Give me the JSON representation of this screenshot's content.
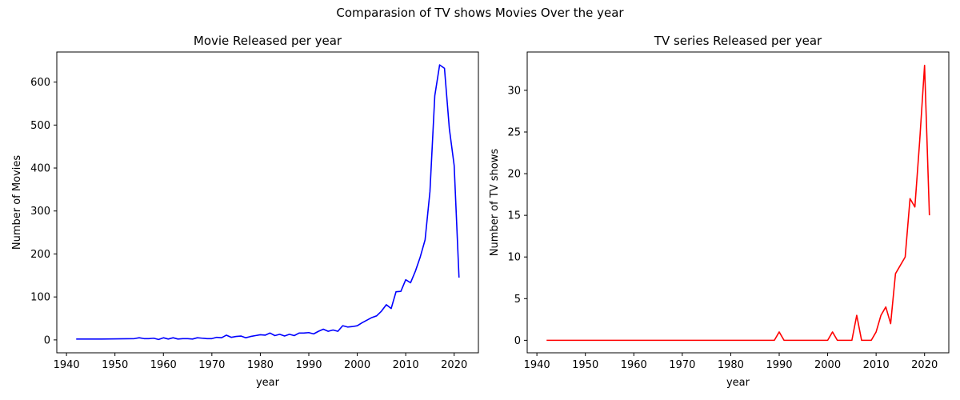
{
  "figure": {
    "title": "Comparasion of TV shows Movies Over the year"
  },
  "chart_data": [
    {
      "type": "line",
      "title": "Movie Released per year",
      "xlabel": "year",
      "ylabel": "Number of Movies",
      "xlim": [
        1938,
        2025
      ],
      "ylim": [
        -30,
        670
      ],
      "xticks": [
        1940,
        1950,
        1960,
        1970,
        1980,
        1990,
        2000,
        2010,
        2020
      ],
      "yticks": [
        0,
        100,
        200,
        300,
        400,
        500,
        600
      ],
      "grid": false,
      "series": [
        {
          "color": "#0000ff",
          "x": [
            1942,
            1944,
            1945,
            1946,
            1947,
            1954,
            1955,
            1956,
            1957,
            1958,
            1959,
            1960,
            1961,
            1962,
            1963,
            1964,
            1965,
            1966,
            1967,
            1968,
            1969,
            1970,
            1971,
            1972,
            1973,
            1974,
            1975,
            1976,
            1977,
            1978,
            1979,
            1980,
            1981,
            1982,
            1983,
            1984,
            1985,
            1986,
            1987,
            1988,
            1989,
            1990,
            1991,
            1992,
            1993,
            1994,
            1995,
            1996,
            1997,
            1998,
            1999,
            2000,
            2001,
            2002,
            2003,
            2004,
            2005,
            2006,
            2007,
            2008,
            2009,
            2010,
            2011,
            2012,
            2013,
            2014,
            2015,
            2016,
            2017,
            2018,
            2019,
            2020,
            2021
          ],
          "y": [
            2,
            2,
            2,
            2,
            2,
            3,
            5,
            3,
            3,
            4,
            1,
            5,
            2,
            5,
            2,
            3,
            3,
            2,
            5,
            4,
            3,
            3,
            6,
            5,
            11,
            6,
            8,
            9,
            5,
            8,
            10,
            12,
            11,
            16,
            10,
            13,
            9,
            13,
            10,
            16,
            16,
            17,
            14,
            20,
            25,
            20,
            23,
            20,
            33,
            30,
            31,
            33,
            40,
            46,
            52,
            56,
            67,
            82,
            73,
            112,
            113,
            140,
            133,
            160,
            193,
            233,
            345,
            568,
            640,
            632,
            492,
            406,
            145
          ]
        }
      ]
    },
    {
      "type": "line",
      "title": "TV series Released per year",
      "xlabel": "year",
      "ylabel": "Number of TV shows",
      "xlim": [
        1938,
        2025
      ],
      "ylim": [
        -1.5,
        34.6
      ],
      "xticks": [
        1940,
        1950,
        1960,
        1970,
        1980,
        1990,
        2000,
        2010,
        2020
      ],
      "yticks": [
        0,
        5,
        10,
        15,
        20,
        25,
        30
      ],
      "grid": false,
      "series": [
        {
          "color": "#ff0000",
          "x": [
            1942,
            1989,
            1990,
            1991,
            2000,
            2001,
            2002,
            2005,
            2006,
            2007,
            2009,
            2010,
            2011,
            2012,
            2013,
            2014,
            2016,
            2017,
            2018,
            2019,
            2020,
            2021
          ],
          "y": [
            0,
            0,
            1,
            0,
            0,
            1,
            0,
            0,
            3,
            0,
            0,
            1,
            3,
            4,
            2,
            8,
            10,
            17,
            16,
            24,
            33,
            15
          ]
        }
      ]
    }
  ]
}
